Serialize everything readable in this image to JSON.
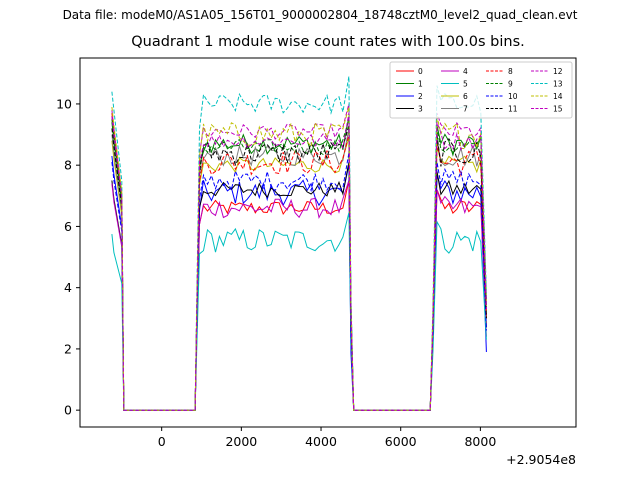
{
  "suptitle": "Data file: modeM0/AS1A05_156T01_9000002804_18748cztM0_level2_quad_clean.evt",
  "title": "Quadrant 1 module wise count rates with 100.0s bins.",
  "x_offset_label": "+2.9054e8",
  "chart_data": {
    "type": "line",
    "title": "Quadrant 1 module wise count rates with 100.0s bins.",
    "xlabel": "",
    "ylabel": "",
    "x_offset": 290540000,
    "xlim": [
      -2050,
      10400
    ],
    "ylim": [
      -0.55,
      11.5
    ],
    "xticks": [
      0,
      2000,
      4000,
      6000,
      8000
    ],
    "xtick_labels": [
      "0",
      "2000",
      "4000",
      "6000",
      "8000"
    ],
    "yticks": [
      0,
      2,
      4,
      6,
      8,
      10
    ],
    "ytick_labels": [
      "0",
      "2",
      "4",
      "6",
      "8",
      "10"
    ],
    "legend_position": "top-right",
    "segments": [
      {
        "start": -1250,
        "end": -1050
      },
      {
        "start": 850,
        "end": 4750
      },
      {
        "start": 6750,
        "end": 8150
      }
    ],
    "series": [
      {
        "name": "0",
        "color": "#ff0000",
        "style": "solid",
        "start_value": 9.6,
        "level": 6.6,
        "drop_value": 3.0
      },
      {
        "name": "1",
        "color": "#008000",
        "style": "solid",
        "start_value": 9.4,
        "level": 8.7,
        "drop_value": 3.6
      },
      {
        "name": "2",
        "color": "#0000ff",
        "style": "solid",
        "start_value": 8.3,
        "level": 7.1,
        "drop_value": 1.9
      },
      {
        "name": "3",
        "color": "#000000",
        "style": "solid",
        "start_value": 7.5,
        "level": 7.2,
        "drop_value": 2.7
      },
      {
        "name": "4",
        "color": "#bf00bf",
        "style": "solid",
        "start_value": 7.4,
        "level": 6.6,
        "drop_value": 2.4
      },
      {
        "name": "5",
        "color": "#00bfbf",
        "style": "solid",
        "start_value": 5.75,
        "level": 5.55,
        "drop_value": 2.3
      },
      {
        "name": "6",
        "color": "#bfbf00",
        "style": "solid",
        "start_value": 8.8,
        "level": 8.0,
        "drop_value": 3.2
      },
      {
        "name": "7",
        "color": "#808080",
        "style": "solid",
        "start_value": 9.0,
        "level": 8.3,
        "drop_value": 3.3
      },
      {
        "name": "8",
        "color": "#ff0000",
        "style": "dashed",
        "start_value": 9.7,
        "level": 8.1,
        "drop_value": 3.1
      },
      {
        "name": "9",
        "color": "#008000",
        "style": "dashed",
        "start_value": 9.5,
        "level": 8.6,
        "drop_value": 3.4
      },
      {
        "name": "10",
        "color": "#0000ff",
        "style": "dashed",
        "start_value": 8.1,
        "level": 7.5,
        "drop_value": 2.6
      },
      {
        "name": "11",
        "color": "#000000",
        "style": "dashed",
        "start_value": 9.2,
        "level": 8.4,
        "drop_value": 3.0
      },
      {
        "name": "12",
        "color": "#bf00bf",
        "style": "dashed",
        "start_value": 9.8,
        "level": 9.1,
        "drop_value": 3.5
      },
      {
        "name": "13",
        "color": "#00bfbf",
        "style": "dashed",
        "start_value": 10.4,
        "level": 10.0,
        "drop_value": 3.8
      },
      {
        "name": "14",
        "color": "#bfbf00",
        "style": "dashed",
        "start_value": 9.9,
        "level": 9.0,
        "drop_value": 3.4
      },
      {
        "name": "15",
        "color": "#bf00bf",
        "style": "dashed",
        "start_value": 9.6,
        "level": 8.8,
        "drop_value": 3.3
      }
    ]
  }
}
